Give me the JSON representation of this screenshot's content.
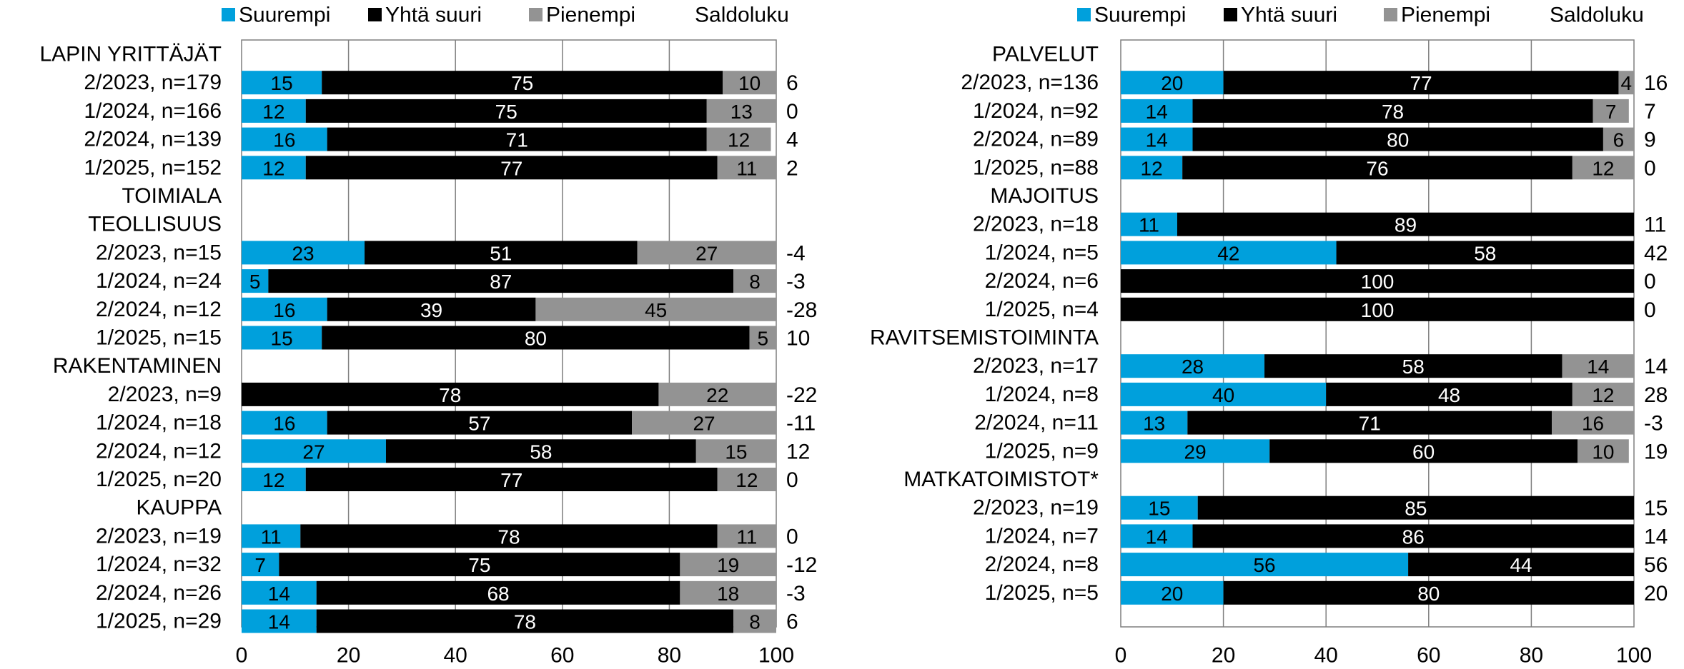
{
  "colors": {
    "suurempi": "#00A0DC",
    "yhta_suuri": "#000000",
    "pienempi": "#939393",
    "grid": "#7f7f7f",
    "text": "#000000"
  },
  "chart_data": [
    {
      "type": "bar",
      "orientation": "horizontal",
      "stacked": true,
      "xlim": [
        0,
        100
      ],
      "x_ticks": [
        "0",
        "20",
        "40",
        "60",
        "80",
        "100"
      ],
      "grid": "vertical",
      "legend": {
        "position": "top",
        "items": [
          "Suurempi",
          "Yhtä suuri",
          "Pienempi"
        ],
        "extra_column": "Saldoluku"
      },
      "rows": [
        {
          "label": "LAPIN YRITTÄJÄT",
          "header": true
        },
        {
          "label": "2/2023, n=179",
          "values": [
            15,
            75,
            10
          ],
          "saldo": "6"
        },
        {
          "label": "1/2024, n=166",
          "values": [
            12,
            75,
            13
          ],
          "saldo": "0"
        },
        {
          "label": "2/2024, n=139",
          "values": [
            16,
            71,
            12
          ],
          "saldo": "4"
        },
        {
          "label": "1/2025, n=152",
          "values": [
            12,
            77,
            11
          ],
          "saldo": "2"
        },
        {
          "label": "TOIMIALA",
          "header": true
        },
        {
          "label": "TEOLLISUUS",
          "header": true
        },
        {
          "label": "2/2023, n=15",
          "values": [
            23,
            51,
            27
          ],
          "saldo": "-4"
        },
        {
          "label": "1/2024, n=24",
          "values": [
            5,
            87,
            8
          ],
          "saldo": "-3"
        },
        {
          "label": "2/2024, n=12",
          "values": [
            16,
            39,
            45
          ],
          "saldo": "-28"
        },
        {
          "label": "1/2025, n=15",
          "values": [
            15,
            80,
            5
          ],
          "saldo": "10"
        },
        {
          "label": "RAKENTAMINEN",
          "header": true
        },
        {
          "label": "2/2023, n=9",
          "values": [
            0,
            78,
            22
          ],
          "saldo": "-22"
        },
        {
          "label": "1/2024, n=18",
          "values": [
            16,
            57,
            27
          ],
          "saldo": "-11"
        },
        {
          "label": "2/2024, n=12",
          "values": [
            27,
            58,
            15
          ],
          "saldo": "12"
        },
        {
          "label": "1/2025, n=20",
          "values": [
            12,
            77,
            12
          ],
          "saldo": "0"
        },
        {
          "label": "KAUPPA",
          "header": true
        },
        {
          "label": "2/2023, n=19",
          "values": [
            11,
            78,
            11
          ],
          "saldo": "0"
        },
        {
          "label": "1/2024, n=32",
          "values": [
            7,
            75,
            19
          ],
          "saldo": "-12"
        },
        {
          "label": "2/2024, n=26",
          "values": [
            14,
            68,
            18
          ],
          "saldo": "-3"
        },
        {
          "label": "1/2025, n=29",
          "values": [
            14,
            78,
            8
          ],
          "saldo": "6"
        }
      ]
    },
    {
      "type": "bar",
      "orientation": "horizontal",
      "stacked": true,
      "xlim": [
        0,
        100
      ],
      "x_ticks": [
        "0",
        "20",
        "40",
        "60",
        "80",
        "100"
      ],
      "grid": "vertical",
      "legend": {
        "position": "top",
        "items": [
          "Suurempi",
          "Yhtä suuri",
          "Pienempi"
        ],
        "extra_column": "Saldoluku"
      },
      "rows": [
        {
          "label": "PALVELUT",
          "header": true
        },
        {
          "label": "2/2023, n=136",
          "values": [
            20,
            77,
            4
          ],
          "saldo": "16"
        },
        {
          "label": "1/2024, n=92",
          "values": [
            14,
            78,
            7
          ],
          "saldo": "7"
        },
        {
          "label": "2/2024, n=89",
          "values": [
            14,
            80,
            6
          ],
          "saldo": "9"
        },
        {
          "label": "1/2025, n=88",
          "values": [
            12,
            76,
            12
          ],
          "saldo": "0"
        },
        {
          "label": "MAJOITUS",
          "header": true
        },
        {
          "label": "2/2023, n=18",
          "values": [
            11,
            89,
            0
          ],
          "saldo": "11"
        },
        {
          "label": "1/2024, n=5",
          "values": [
            42,
            58,
            0
          ],
          "saldo": "42"
        },
        {
          "label": "2/2024, n=6",
          "values": [
            0,
            100,
            0
          ],
          "saldo": "0"
        },
        {
          "label": "1/2025, n=4",
          "values": [
            0,
            100,
            0
          ],
          "saldo": "0"
        },
        {
          "label": "RAVITSEMISTOIMINTA",
          "header": true
        },
        {
          "label": "2/2023, n=17",
          "values": [
            28,
            58,
            14
          ],
          "saldo": "14"
        },
        {
          "label": "1/2024, n=8",
          "values": [
            40,
            48,
            12
          ],
          "saldo": "28"
        },
        {
          "label": "2/2024, n=11",
          "values": [
            13,
            71,
            16
          ],
          "saldo": "-3"
        },
        {
          "label": "1/2025, n=9",
          "values": [
            29,
            60,
            10
          ],
          "saldo": "19"
        },
        {
          "label": "MATKATOIMISTOT*",
          "header": true
        },
        {
          "label": "2/2023, n=19",
          "values": [
            15,
            85,
            0
          ],
          "saldo": "15"
        },
        {
          "label": "1/2024, n=7",
          "values": [
            14,
            86,
            0
          ],
          "saldo": "14"
        },
        {
          "label": "2/2024, n=8",
          "values": [
            56,
            44,
            0
          ],
          "saldo": "56"
        },
        {
          "label": "1/2025, n=5",
          "values": [
            20,
            80,
            0
          ],
          "saldo": "20"
        }
      ]
    }
  ]
}
